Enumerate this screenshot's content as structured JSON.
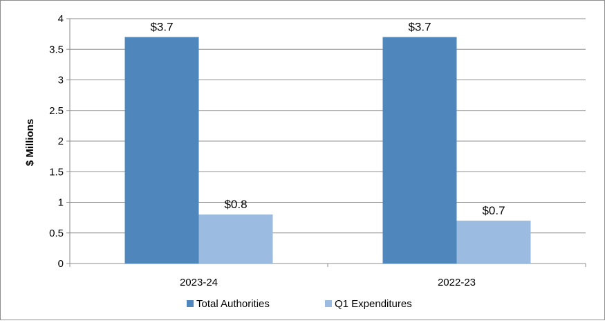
{
  "chart_data": {
    "type": "bar",
    "title": "",
    "xlabel": "",
    "ylabel": "$ Millions",
    "ylim": [
      0,
      4
    ],
    "yticks": [
      0,
      0.5,
      1,
      1.5,
      2,
      2.5,
      3,
      3.5,
      4
    ],
    "ytick_labels": [
      "0",
      "0.5",
      "1",
      "1.5",
      "2",
      "2.5",
      "3",
      "3.5",
      "4"
    ],
    "grid": true,
    "legend_position": "bottom",
    "categories": [
      "2023-24",
      "2022-23"
    ],
    "series": [
      {
        "name": "Total Authorities",
        "color": "#4f87bd",
        "values": [
          3.7,
          3.7
        ],
        "data_labels": [
          "$3.7",
          "$3.7"
        ]
      },
      {
        "name": "Q1 Expenditures",
        "color": "#9bbbe0",
        "values": [
          0.8,
          0.7
        ],
        "data_labels": [
          "$0.8",
          "$0.7"
        ]
      }
    ]
  }
}
